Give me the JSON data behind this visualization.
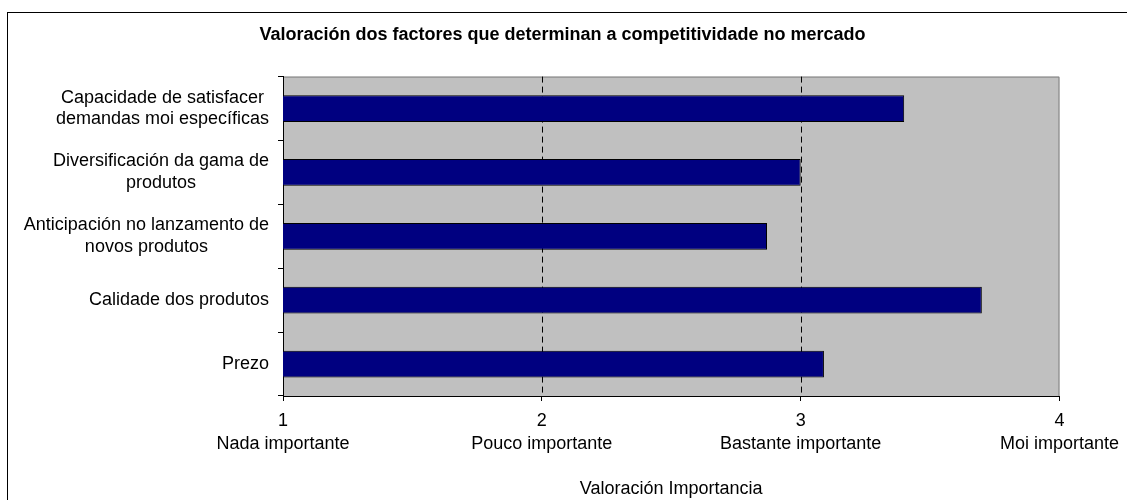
{
  "chart_data": {
    "type": "bar",
    "orientation": "horizontal",
    "title": "Valoración dos factores que determinan a competitividade no mercado",
    "xlabel": "Valoración Importancia",
    "categories": [
      "Capacidade de satisfacer demandas moi específicas",
      "Diversificación da gama de produtos",
      "Anticipación no lanzamento de novos produtos",
      "Calidade dos produtos",
      "Prezo"
    ],
    "values": [
      3.4,
      3.0,
      2.87,
      3.7,
      3.09
    ],
    "color": "#000080",
    "xlim": [
      1,
      4
    ],
    "xticks": [
      {
        "value": 1,
        "label": "1\nNada importante"
      },
      {
        "value": 2,
        "label": "2\nPouco importante"
      },
      {
        "value": 3,
        "label": "3\nBastante importante"
      },
      {
        "value": 4,
        "label": "4\nMoi importante"
      }
    ],
    "grid": "x"
  }
}
